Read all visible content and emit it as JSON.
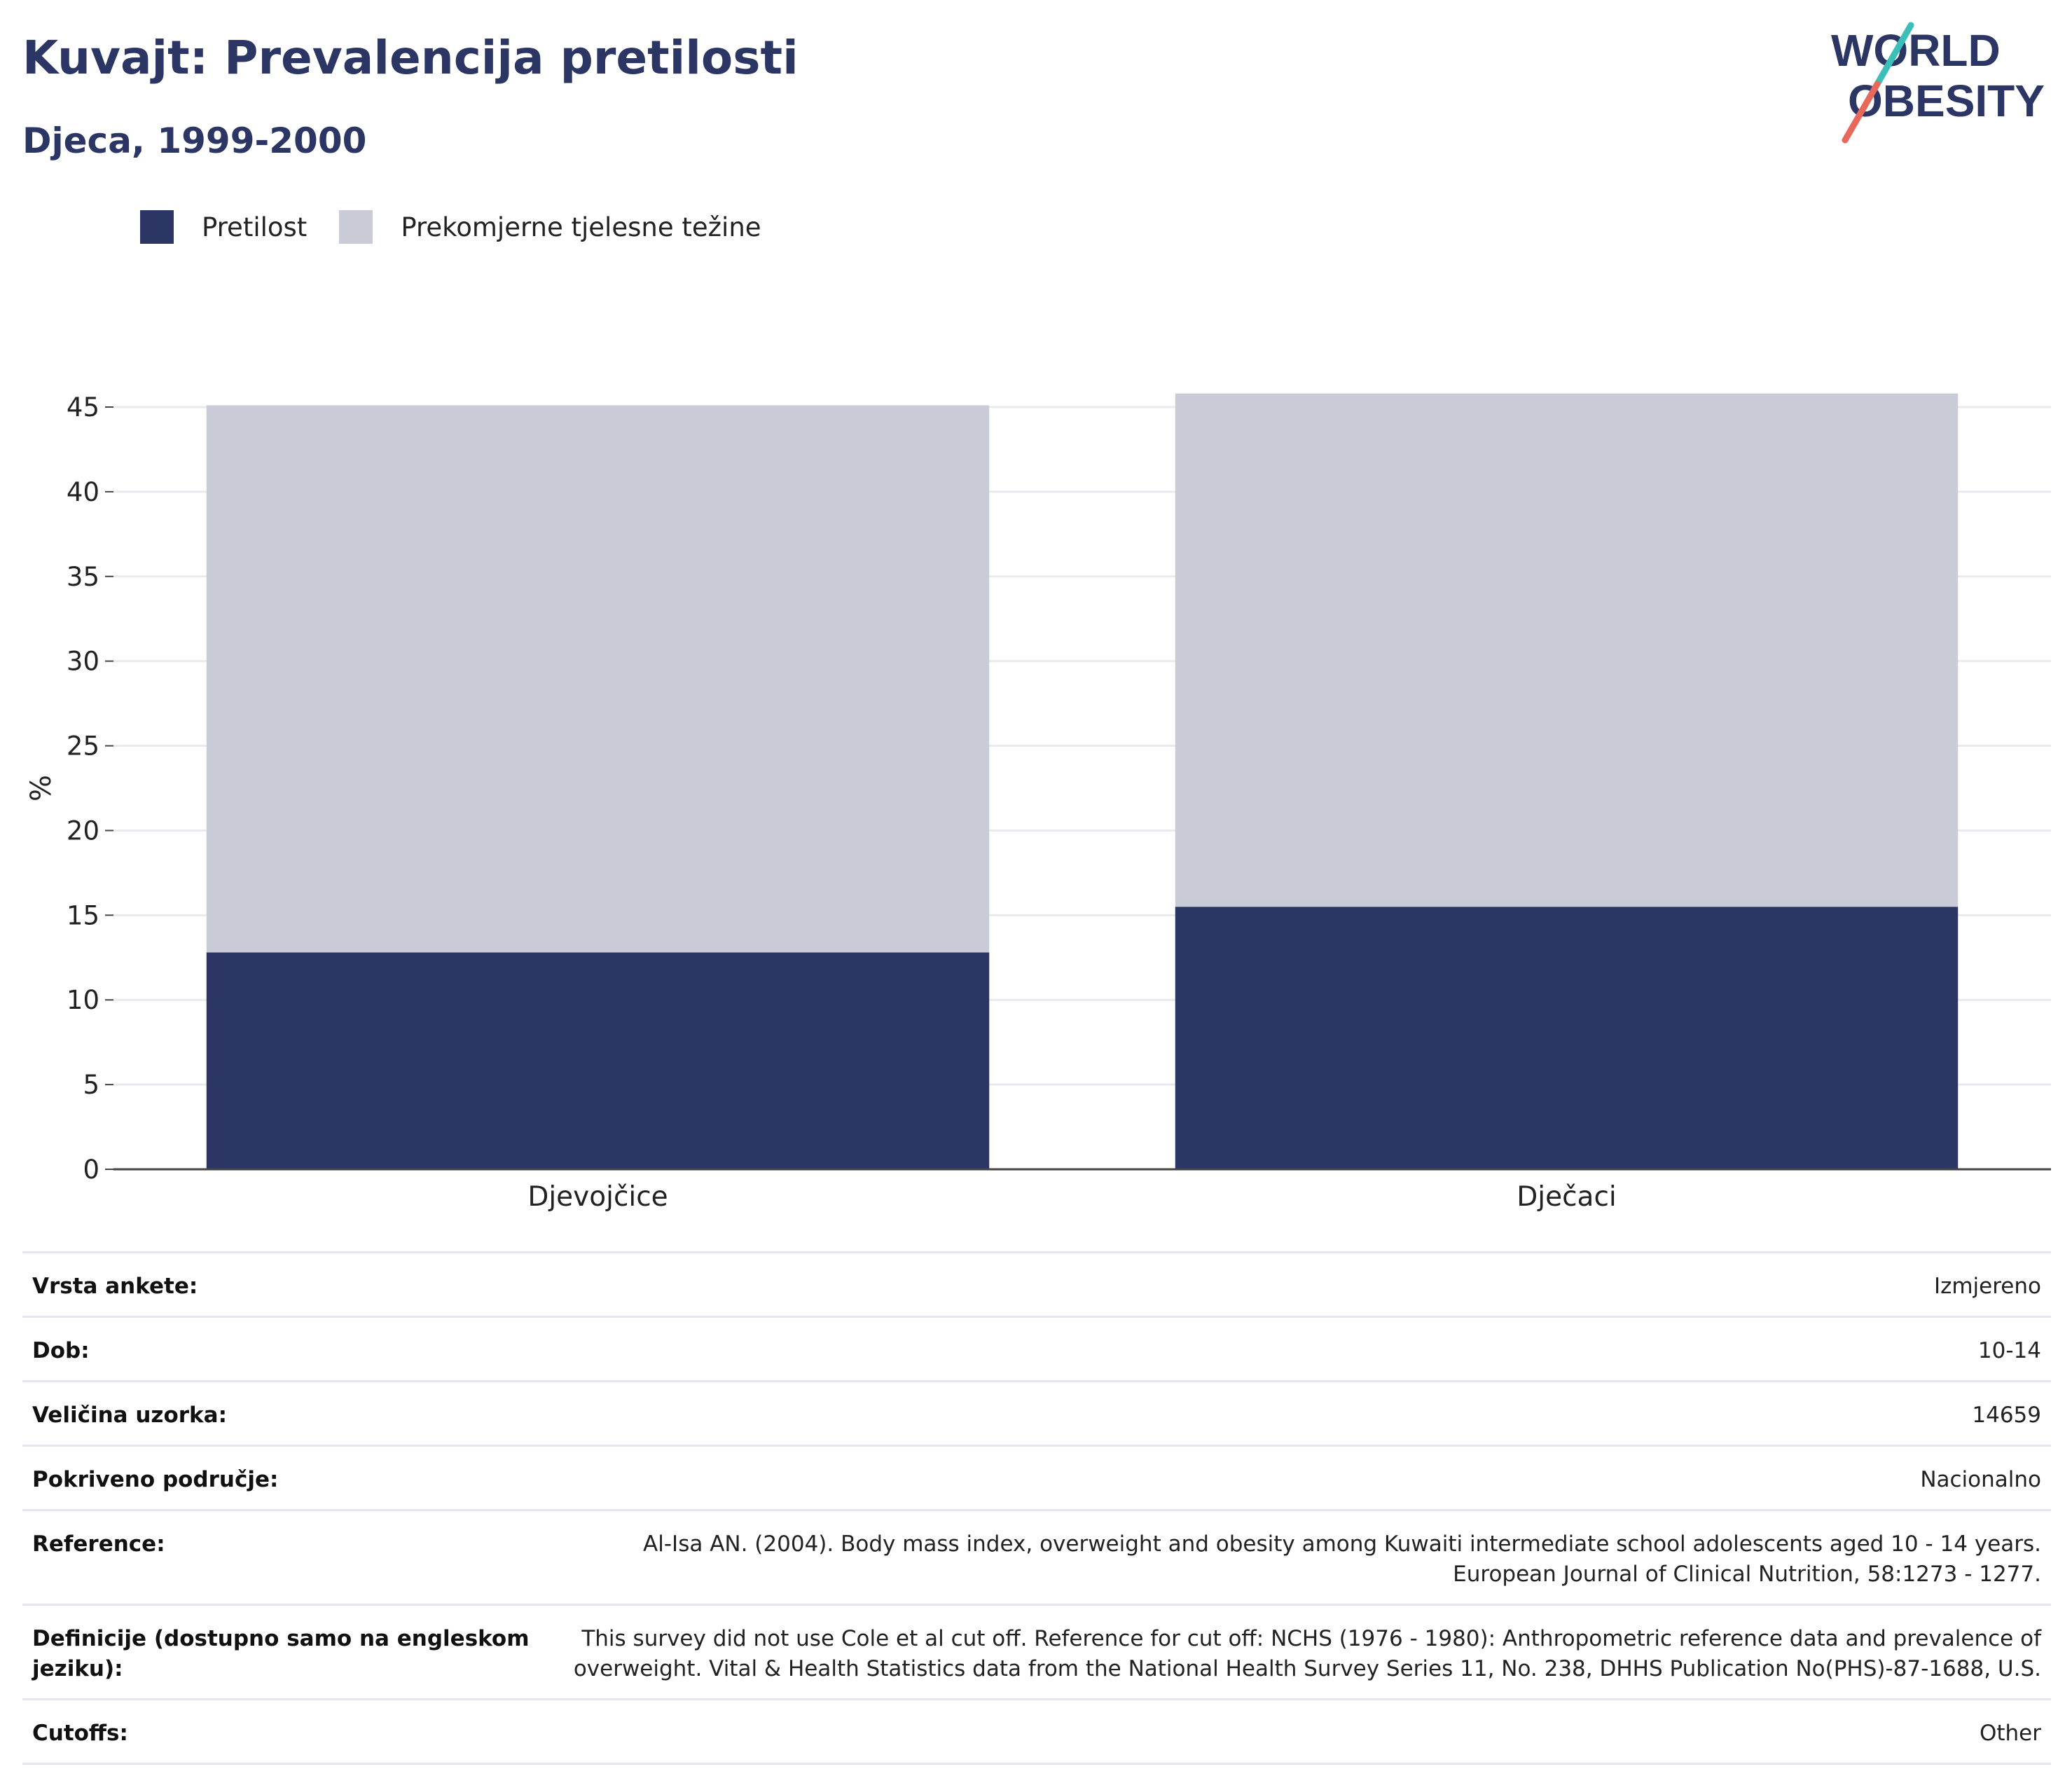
{
  "header": {
    "title": "Kuvajt: Prevalencija pretilosti",
    "subtitle": "Djeca, 1999-2000",
    "logo_line1": "WORLD",
    "logo_line2": "OBESITY"
  },
  "legend": [
    {
      "label": "Pretilost",
      "color": "#2b3664"
    },
    {
      "label": "Prekomjerne tjelesne težine",
      "color": "#c9cbd7"
    }
  ],
  "chart_data": {
    "type": "bar",
    "stacked": true,
    "categories": [
      "Djevojčice",
      "Dječaci"
    ],
    "series": [
      {
        "name": "Pretilost",
        "values": [
          12.8,
          15.5
        ],
        "color": "#2b3664"
      },
      {
        "name": "Prekomjerne tjelesne težine",
        "values": [
          32.3,
          30.3
        ],
        "color": "#c9cbd7"
      }
    ],
    "ylabel": "%",
    "ylim": [
      0,
      45
    ],
    "yticks": [
      0,
      5,
      10,
      15,
      20,
      25,
      30,
      35,
      40,
      45
    ],
    "grid": true,
    "legend_position": "top-left"
  },
  "info_table": [
    {
      "key": "Vrsta ankete:",
      "value": "Izmjereno"
    },
    {
      "key": "Dob:",
      "value": "10-14"
    },
    {
      "key": "Veličina uzorka:",
      "value": "14659"
    },
    {
      "key": "Pokriveno područje:",
      "value": "Nacionalno"
    },
    {
      "key": "Reference:",
      "value": "Al-Isa AN. (2004). Body mass index, overweight and obesity among Kuwaiti intermediate school adolescents aged 10 - 14 years. European Journal of Clinical Nutrition, 58:1273 - 1277."
    },
    {
      "key": "Definicije (dostupno samo na engleskom jeziku):",
      "value": "This survey did not use Cole et al cut off. Reference for cut off: NCHS (1976 - 1980): Anthropometric reference data and prevalence of overweight. Vital & Health Statistics data from the National Health Survey Series 11, No. 238, DHHS Publication No(PHS)-87-1688, U.S."
    },
    {
      "key": "Cutoffs:",
      "value": "Other"
    }
  ]
}
